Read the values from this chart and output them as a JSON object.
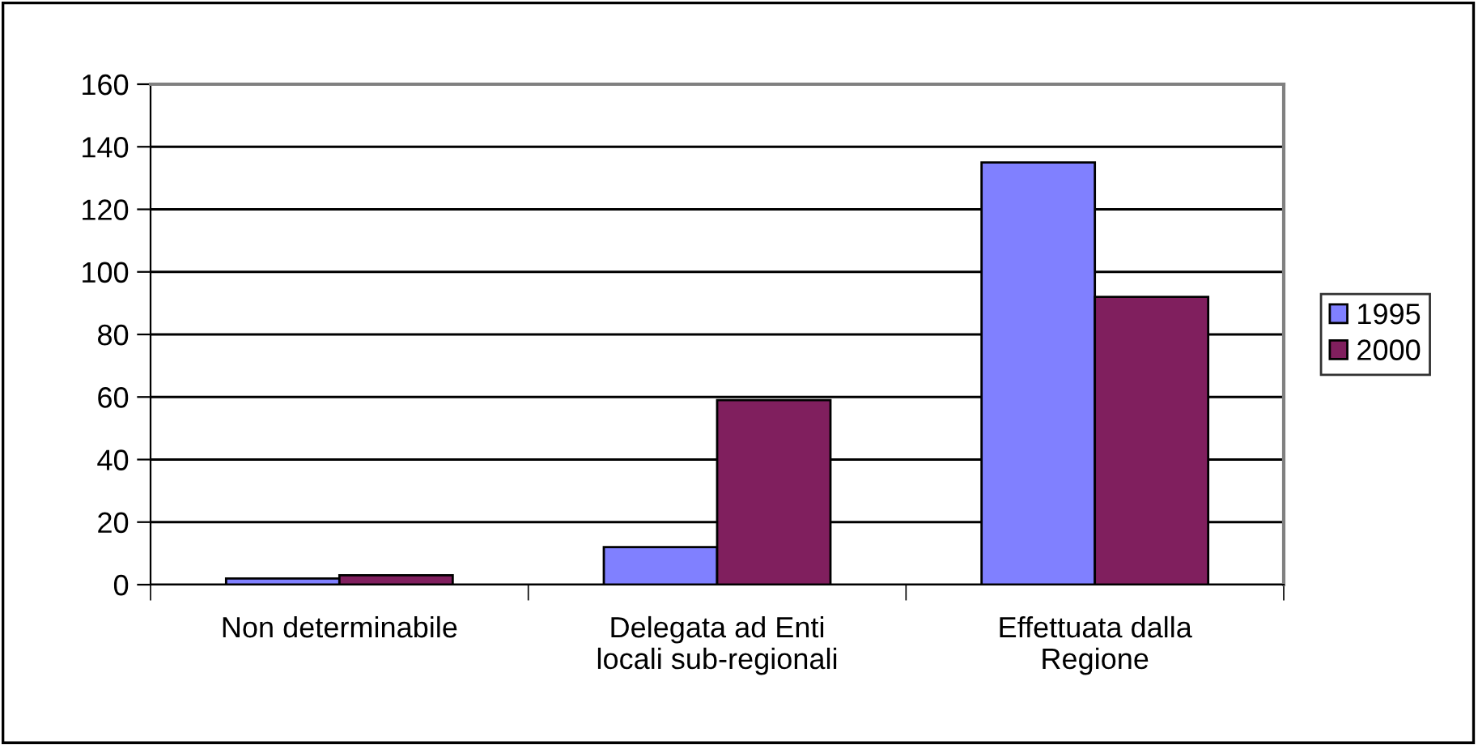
{
  "chart_data": {
    "type": "bar",
    "categories": [
      "Non determinabile",
      "Delegata ad Enti\nlocali sub-regionali",
      "Effettuata dalla\nRegione"
    ],
    "series": [
      {
        "name": "1995",
        "color": "#8080ff",
        "values": [
          2,
          12,
          135
        ]
      },
      {
        "name": "2000",
        "color": "#801f5e",
        "values": [
          3,
          59,
          92
        ]
      }
    ],
    "ylim": [
      0,
      160
    ],
    "yticks": [
      0,
      20,
      40,
      60,
      80,
      100,
      120,
      140,
      160
    ],
    "grid": "y",
    "legend": "right"
  }
}
